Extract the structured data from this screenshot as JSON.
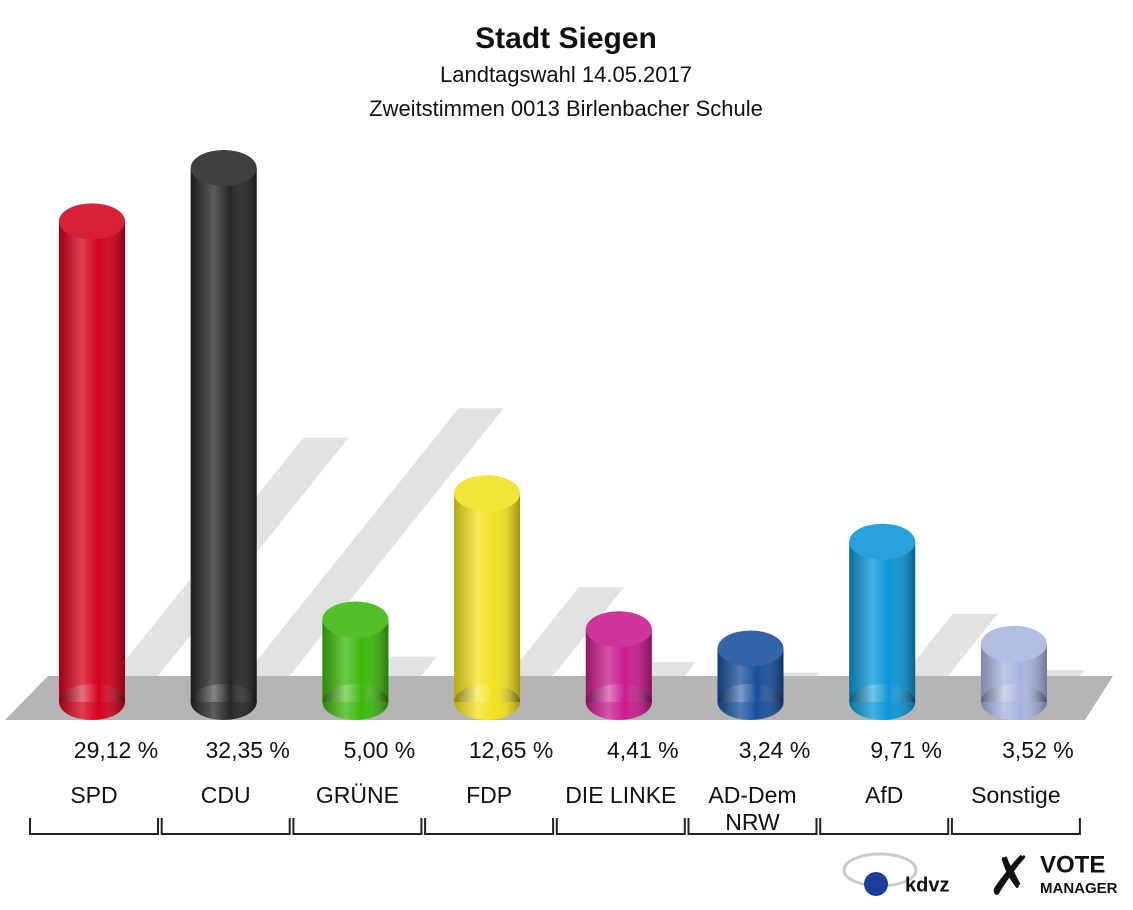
{
  "chart_data": {
    "type": "bar",
    "title": "Stadt Siegen",
    "subtitle": "Landtagswahl 14.05.2017",
    "subtitle2": "Zweitstimmen 0013 Birlenbacher Schule",
    "categories": [
      "SPD",
      "CDU",
      "GRÜNE",
      "FDP",
      "DIE LINKE",
      "AD-Dem NRW",
      "AfD",
      "Sonstige"
    ],
    "values": [
      29.12,
      32.35,
      5.0,
      12.65,
      4.41,
      3.24,
      9.71,
      3.52
    ],
    "value_labels": [
      "29,12 %",
      "32,35 %",
      "5,00 %",
      "12,65 %",
      "4,41 %",
      "3,24 %",
      "9,71 %",
      "3,52 %"
    ],
    "colors": [
      "#d4001a",
      "#262626",
      "#3cb80c",
      "#f2e21d",
      "#c81a8c",
      "#174f9c",
      "#0a96d6",
      "#a7b4de"
    ],
    "logo": {
      "brand": "kdvz",
      "vote": "VOTE",
      "manager": "MANAGER"
    }
  }
}
